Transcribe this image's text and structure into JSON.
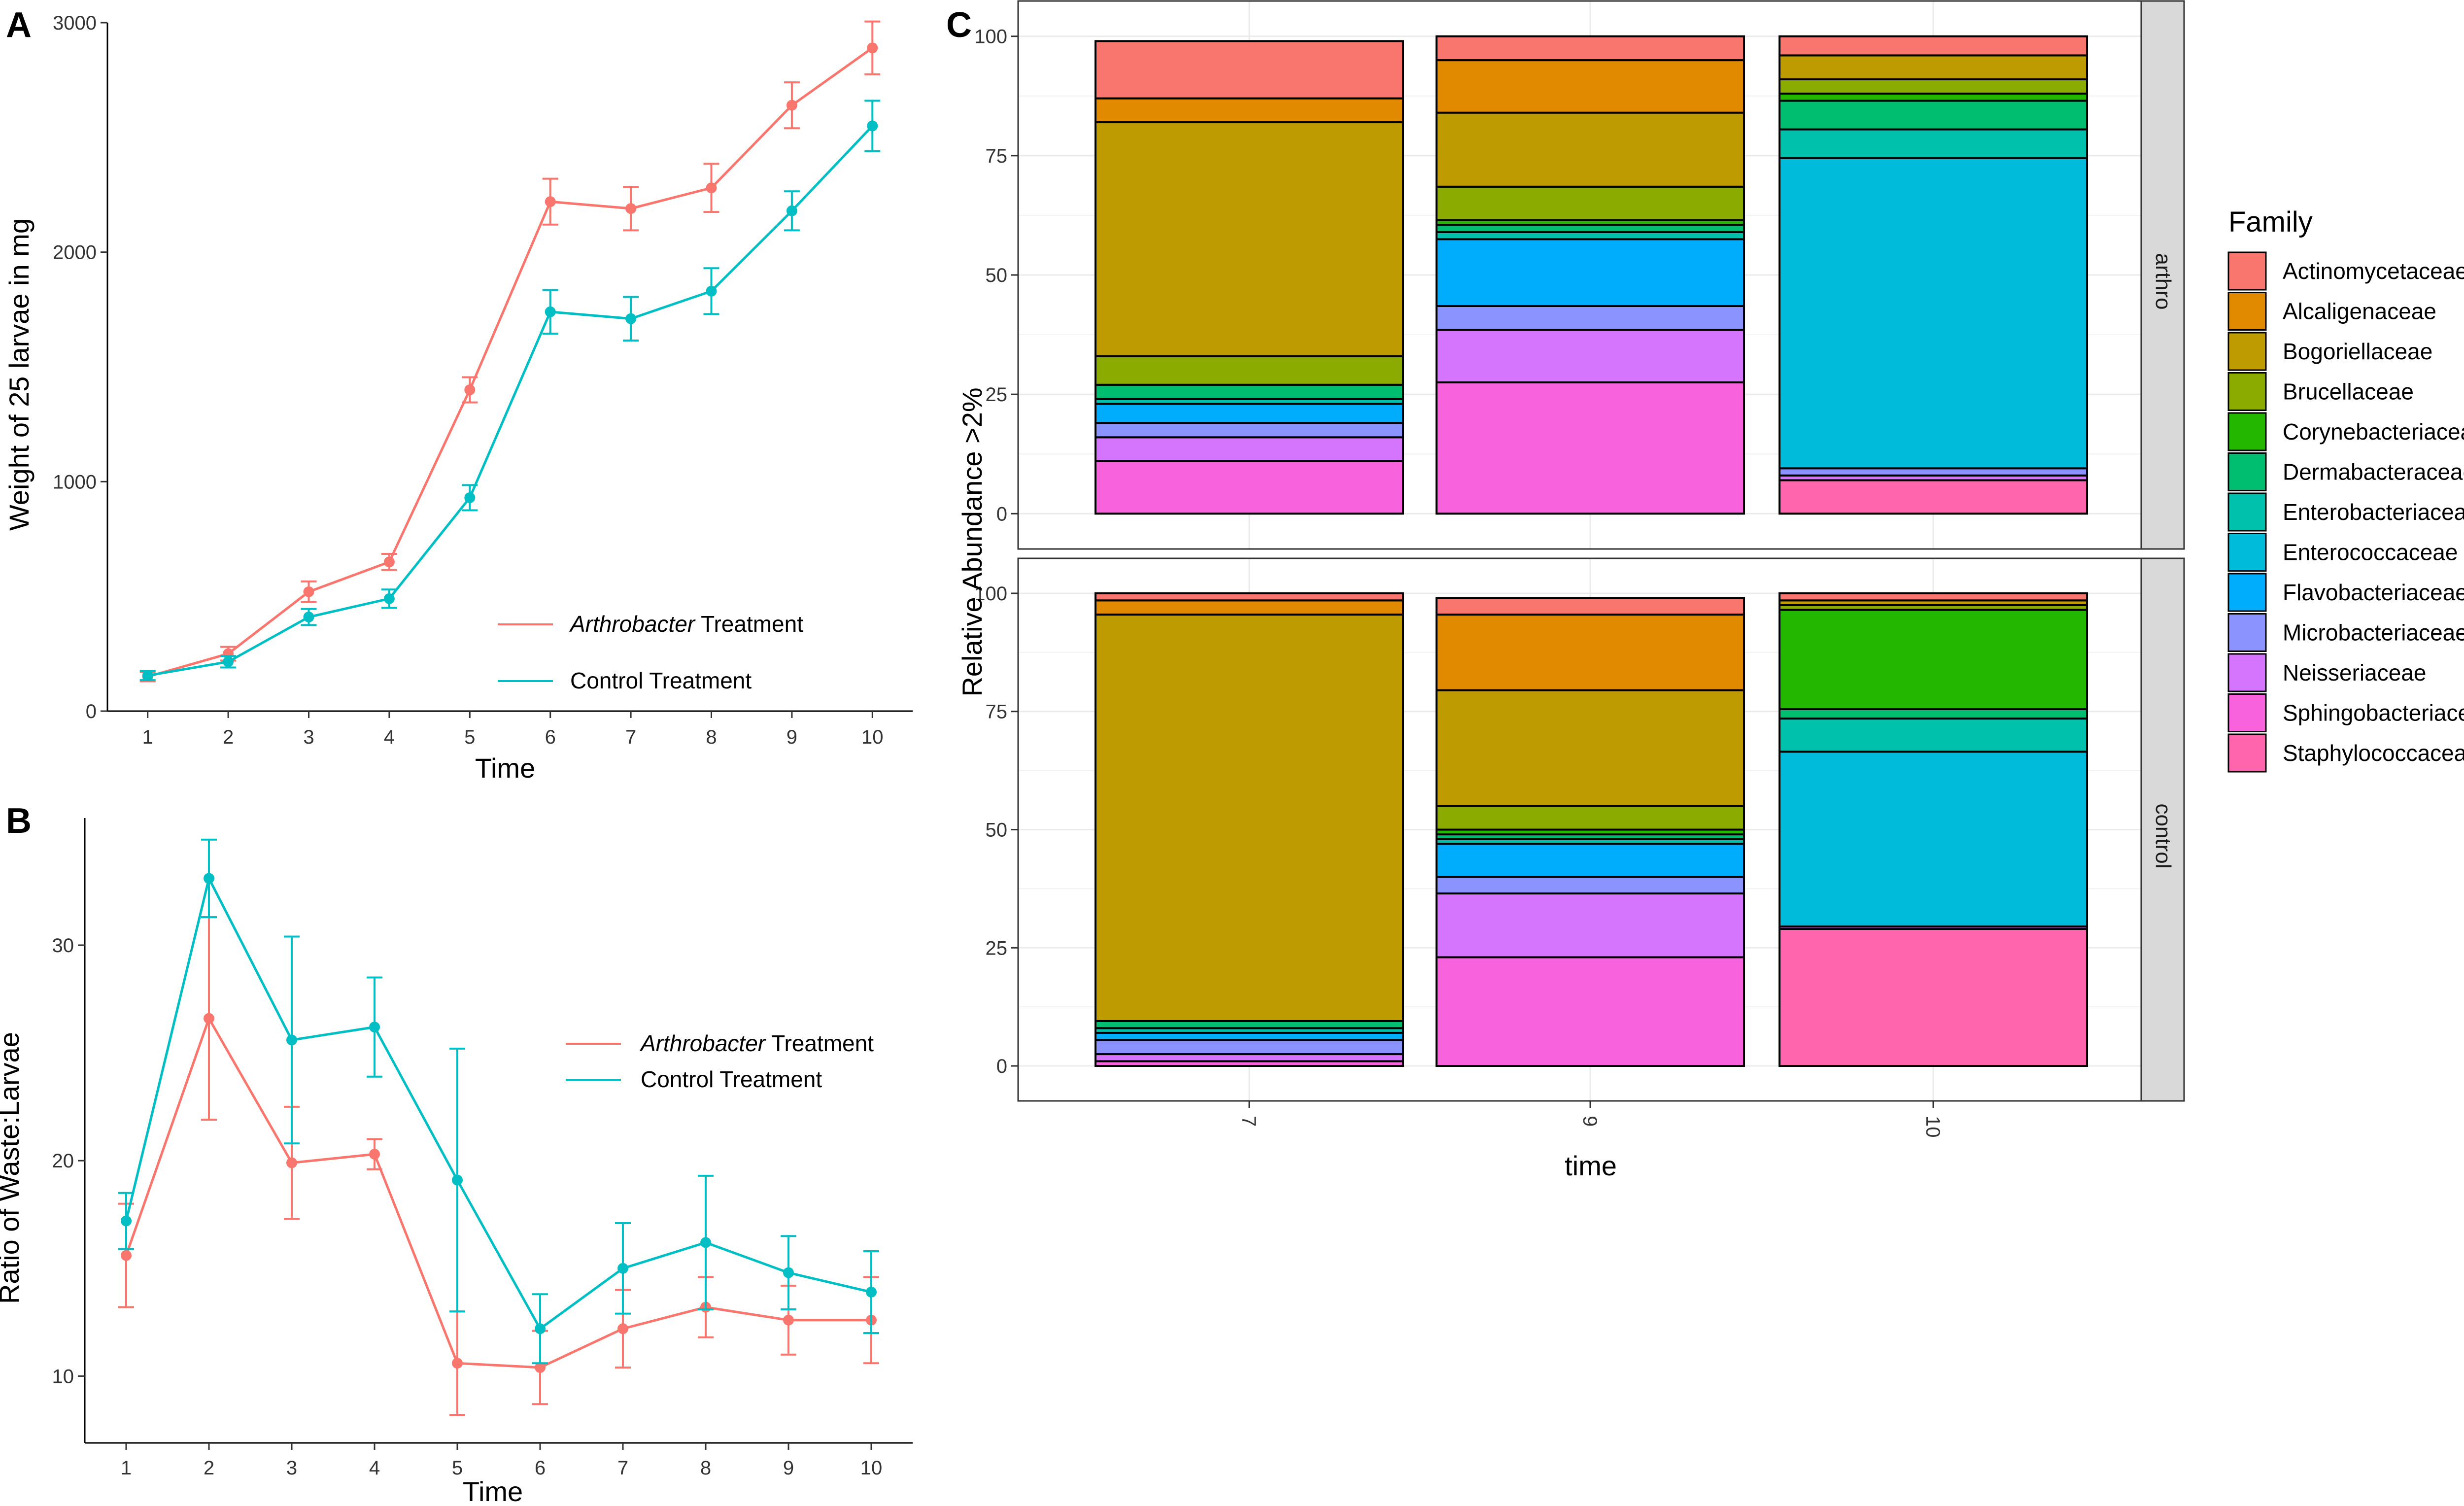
{
  "chart_data": [
    {
      "id": "A",
      "type": "line",
      "panel_label": "A",
      "title": "",
      "xlabel": "Time",
      "ylabel": "Weight of 25 larvae in mg",
      "x": [
        1,
        2,
        3,
        4,
        5,
        6,
        7,
        8,
        9,
        10
      ],
      "xlim": [
        0.5,
        10.5
      ],
      "ylim": [
        0,
        3000
      ],
      "yticks": [
        0,
        1000,
        2000,
        3000
      ],
      "xticks": [
        "1",
        "2",
        "3",
        "4",
        "5",
        "6",
        "7",
        "8",
        "9",
        "10"
      ],
      "grid": false,
      "legend_position": "bottom-right",
      "series": [
        {
          "name_italic": "Arthrobacter",
          "name_rest": " Treatment",
          "color": "#F8766D",
          "values": [
            150,
            250,
            520,
            650,
            1400,
            2220,
            2190,
            2280,
            2640,
            2890
          ],
          "err": [
            20,
            30,
            45,
            35,
            55,
            100,
            95,
            105,
            100,
            115
          ]
        },
        {
          "name_italic": "",
          "name_rest": "Control Treatment",
          "color": "#00BFC4",
          "values": [
            155,
            215,
            410,
            490,
            930,
            1740,
            1710,
            1830,
            2180,
            2550
          ],
          "err": [
            20,
            25,
            35,
            40,
            55,
            95,
            95,
            100,
            85,
            110
          ]
        }
      ]
    },
    {
      "id": "B",
      "type": "line",
      "panel_label": "B",
      "title": "",
      "xlabel": "Time",
      "ylabel": "Ratio of Waste:Larvae",
      "x": [
        1,
        2,
        3,
        4,
        5,
        6,
        7,
        8,
        9,
        10
      ],
      "xlim": [
        0.5,
        10.5
      ],
      "ylim": [
        6.9,
        35.9
      ],
      "yticks": [
        10,
        20,
        30
      ],
      "xticks": [
        "1",
        "2",
        "3",
        "4",
        "5",
        "6",
        "7",
        "8",
        "9",
        "10"
      ],
      "grid": false,
      "legend_position": "top-right",
      "series": [
        {
          "name_italic": "Arthrobacter",
          "name_rest": " Treatment",
          "color": "#F8766D",
          "values": [
            15.6,
            26.6,
            19.9,
            20.3,
            10.6,
            10.4,
            12.2,
            13.2,
            12.6,
            12.6
          ],
          "err": [
            2.4,
            4.7,
            2.6,
            0.7,
            2.4,
            1.7,
            1.8,
            1.4,
            1.6,
            2.0
          ]
        },
        {
          "name_italic": "",
          "name_rest": "Control Treatment",
          "color": "#00BFC4",
          "values": [
            17.2,
            33.1,
            25.6,
            26.2,
            19.1,
            12.2,
            15.0,
            16.2,
            14.8,
            13.9
          ],
          "err": [
            1.3,
            1.8,
            4.8,
            2.3,
            6.1,
            1.6,
            2.1,
            3.1,
            1.7,
            1.9
          ]
        }
      ]
    },
    {
      "id": "C",
      "type": "bar",
      "stacked": true,
      "panel_label": "C",
      "title": "",
      "xlabel": "time",
      "ylabel": "Relative Abundance >2%",
      "categories": [
        "7",
        "9",
        "10"
      ],
      "ylim": [
        0,
        100
      ],
      "yticks": [
        0,
        25,
        50,
        75,
        100
      ],
      "grid": true,
      "legend_position": "right",
      "legend_title": "Family",
      "families": [
        {
          "name": "Actinomycetaceae",
          "color": "#F8766D"
        },
        {
          "name": "Alcaligenaceae",
          "color": "#E18A00"
        },
        {
          "name": "Bogoriellaceae",
          "color": "#BE9C00"
        },
        {
          "name": "Brucellaceae",
          "color": "#8CAB00"
        },
        {
          "name": "Corynebacteriaceae",
          "color": "#24B700"
        },
        {
          "name": "Dermabacteraceae",
          "color": "#00BE70"
        },
        {
          "name": "Enterobacteriaceae",
          "color": "#00C1AB"
        },
        {
          "name": "Enterococcaceae",
          "color": "#00BBDA"
        },
        {
          "name": "Flavobacteriaceae",
          "color": "#00ACFC"
        },
        {
          "name": "Microbacteriaceae",
          "color": "#8B93FF"
        },
        {
          "name": "Neisseriaceae",
          "color": "#D575FE"
        },
        {
          "name": "Sphingobacteriaceae",
          "color": "#F962DD"
        },
        {
          "name": "Staphylococcaceae",
          "color": "#FF65AC"
        }
      ],
      "facets": [
        {
          "name": "arthro",
          "bars": [
            {
              "category": "7",
              "segments": [
                {
                  "f": 11,
                  "v": 11
                },
                {
                  "f": 10,
                  "v": 5
                },
                {
                  "f": 9,
                  "v": 3
                },
                {
                  "f": 8,
                  "v": 4
                },
                {
                  "f": 6,
                  "v": 1
                },
                {
                  "f": 5,
                  "v": 3
                },
                {
                  "f": 3,
                  "v": 6
                },
                {
                  "f": 2,
                  "v": 49
                },
                {
                  "f": 1,
                  "v": 5
                },
                {
                  "f": 0,
                  "v": 12
                }
              ]
            },
            {
              "category": "9",
              "segments": [
                {
                  "f": 11,
                  "v": 27.5
                },
                {
                  "f": 10,
                  "v": 11
                },
                {
                  "f": 9,
                  "v": 5
                },
                {
                  "f": 8,
                  "v": 14
                },
                {
                  "f": 6,
                  "v": 1.5
                },
                {
                  "f": 5,
                  "v": 1.5
                },
                {
                  "f": 4,
                  "v": 1
                },
                {
                  "f": 3,
                  "v": 7
                },
                {
                  "f": 2,
                  "v": 15.5
                },
                {
                  "f": 1,
                  "v": 11
                },
                {
                  "f": 0,
                  "v": 5
                }
              ]
            },
            {
              "category": "10",
              "segments": [
                {
                  "f": 12,
                  "v": 7
                },
                {
                  "f": 10,
                  "v": 1
                },
                {
                  "f": 9,
                  "v": 1.5
                },
                {
                  "f": 7,
                  "v": 65
                },
                {
                  "f": 6,
                  "v": 6
                },
                {
                  "f": 5,
                  "v": 6
                },
                {
                  "f": 4,
                  "v": 1.5
                },
                {
                  "f": 3,
                  "v": 3
                },
                {
                  "f": 2,
                  "v": 5
                },
                {
                  "f": 0,
                  "v": 4
                }
              ]
            }
          ]
        },
        {
          "name": "control",
          "bars": [
            {
              "category": "7",
              "segments": [
                {
                  "f": 11,
                  "v": 1
                },
                {
                  "f": 10,
                  "v": 1.5
                },
                {
                  "f": 9,
                  "v": 3
                },
                {
                  "f": 8,
                  "v": 1.5
                },
                {
                  "f": 6,
                  "v": 1
                },
                {
                  "f": 5,
                  "v": 1.5
                },
                {
                  "f": 2,
                  "v": 86
                },
                {
                  "f": 1,
                  "v": 3
                },
                {
                  "f": 0,
                  "v": 1.5
                }
              ]
            },
            {
              "category": "9",
              "segments": [
                {
                  "f": 11,
                  "v": 23
                },
                {
                  "f": 10,
                  "v": 13.5
                },
                {
                  "f": 9,
                  "v": 3.5
                },
                {
                  "f": 8,
                  "v": 7
                },
                {
                  "f": 6,
                  "v": 1
                },
                {
                  "f": 5,
                  "v": 1
                },
                {
                  "f": 4,
                  "v": 1
                },
                {
                  "f": 3,
                  "v": 5
                },
                {
                  "f": 2,
                  "v": 24.5
                },
                {
                  "f": 1,
                  "v": 16
                },
                {
                  "f": 0,
                  "v": 3.5
                }
              ]
            },
            {
              "category": "10",
              "segments": [
                {
                  "f": 12,
                  "v": 29
                },
                {
                  "f": 10,
                  "v": 0.5
                },
                {
                  "f": 7,
                  "v": 37
                },
                {
                  "f": 6,
                  "v": 7
                },
                {
                  "f": 5,
                  "v": 2
                },
                {
                  "f": 4,
                  "v": 21
                },
                {
                  "f": 3,
                  "v": 1
                },
                {
                  "f": 2,
                  "v": 1
                },
                {
                  "f": 0,
                  "v": 1.5
                }
              ]
            }
          ]
        }
      ]
    }
  ]
}
